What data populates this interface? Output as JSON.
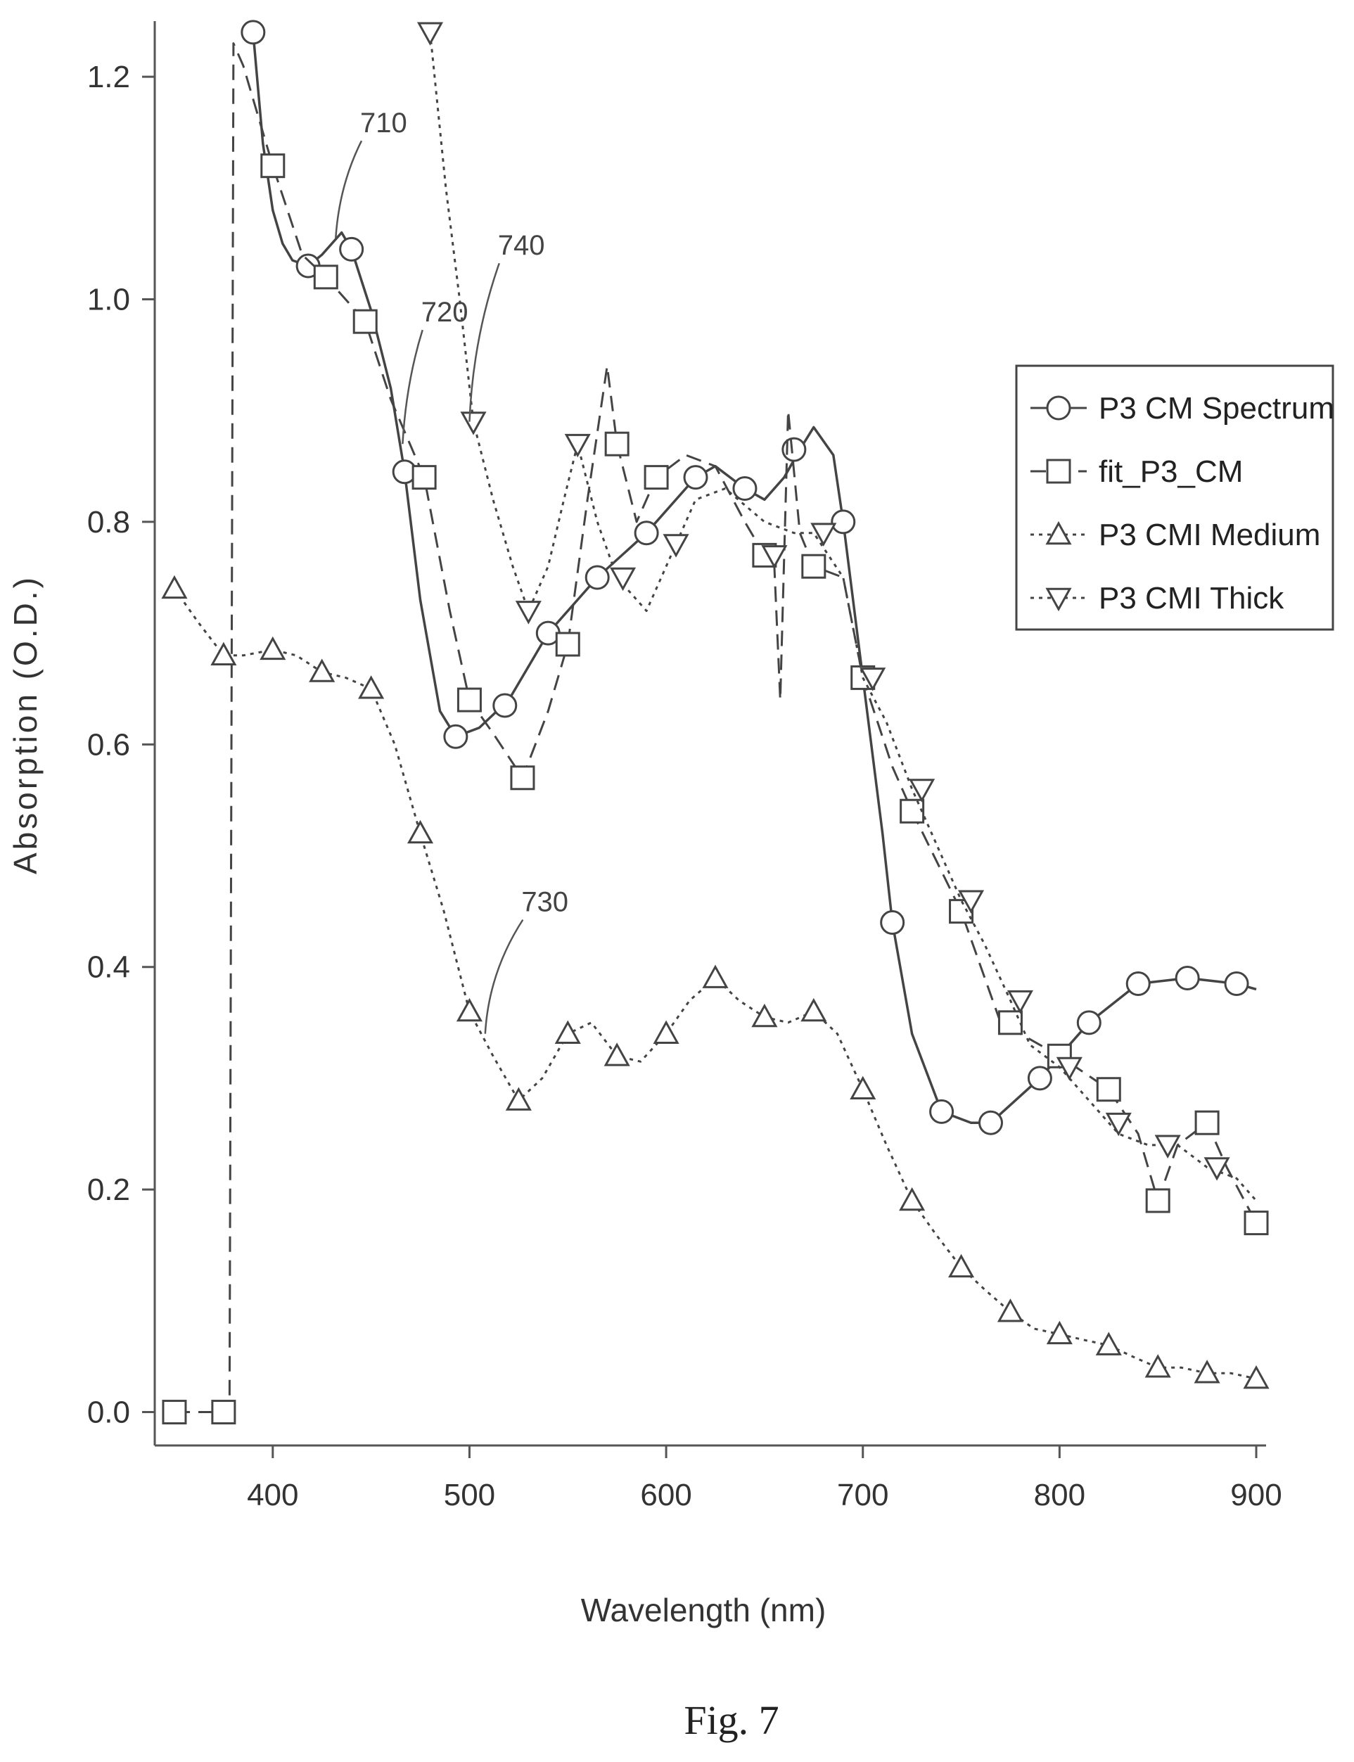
{
  "figure": {
    "caption": "Fig. 7"
  },
  "chart_data": {
    "type": "line",
    "title": "",
    "xlabel": "Wavelength (nm)",
    "ylabel": "Absorption (O.D.)",
    "xlim": [
      340,
      905
    ],
    "ylim": [
      -0.03,
      1.25
    ],
    "xticks": [
      400,
      500,
      600,
      700,
      800,
      900
    ],
    "yticks": [
      0.0,
      0.2,
      0.4,
      0.6,
      0.8,
      1.0,
      1.2
    ],
    "xtick_labels": [
      "400",
      "500",
      "600",
      "700",
      "800",
      "900"
    ],
    "ytick_labels": [
      "0.0",
      "0.2",
      "0.4",
      "0.6",
      "0.8",
      "1.0",
      "1.2"
    ],
    "grid": false,
    "legend_position": "right",
    "series": [
      {
        "name": "P3 CM Spectrum",
        "marker": "circle",
        "dash": "solid",
        "points": [
          [
            390,
            1.24
          ],
          [
            395,
            1.14
          ],
          [
            400,
            1.08
          ],
          [
            405,
            1.05
          ],
          [
            410,
            1.035
          ],
          [
            418,
            1.03
          ],
          [
            425,
            1.04
          ],
          [
            435,
            1.06
          ],
          [
            440,
            1.045
          ],
          [
            450,
            0.99
          ],
          [
            460,
            0.92
          ],
          [
            467,
            0.845
          ],
          [
            475,
            0.73
          ],
          [
            485,
            0.63
          ],
          [
            493,
            0.607
          ],
          [
            505,
            0.615
          ],
          [
            520,
            0.64
          ],
          [
            540,
            0.7
          ],
          [
            565,
            0.75
          ],
          [
            590,
            0.79
          ],
          [
            615,
            0.84
          ],
          [
            625,
            0.85
          ],
          [
            640,
            0.83
          ],
          [
            650,
            0.82
          ],
          [
            660,
            0.84
          ],
          [
            668,
            0.865
          ],
          [
            675,
            0.885
          ],
          [
            685,
            0.86
          ],
          [
            690,
            0.8
          ],
          [
            700,
            0.66
          ],
          [
            710,
            0.52
          ],
          [
            715,
            0.44
          ],
          [
            725,
            0.34
          ],
          [
            740,
            0.27
          ],
          [
            755,
            0.26
          ],
          [
            765,
            0.26
          ],
          [
            790,
            0.3
          ],
          [
            815,
            0.35
          ],
          [
            840,
            0.385
          ],
          [
            865,
            0.39
          ],
          [
            890,
            0.385
          ],
          [
            900,
            0.38
          ]
        ],
        "markers_at": [
          [
            390,
            1.24
          ],
          [
            418,
            1.03
          ],
          [
            440,
            1.045
          ],
          [
            467,
            0.845
          ],
          [
            493,
            0.607
          ],
          [
            518,
            0.635
          ],
          [
            540,
            0.7
          ],
          [
            565,
            0.75
          ],
          [
            590,
            0.79
          ],
          [
            615,
            0.84
          ],
          [
            640,
            0.83
          ],
          [
            665,
            0.865
          ],
          [
            690,
            0.8
          ],
          [
            715,
            0.44
          ],
          [
            740,
            0.27
          ],
          [
            765,
            0.26
          ],
          [
            790,
            0.3
          ],
          [
            815,
            0.35
          ],
          [
            840,
            0.385
          ],
          [
            865,
            0.39
          ],
          [
            890,
            0.385
          ]
        ]
      },
      {
        "name": "fit_P3_CM",
        "marker": "square",
        "dash": "dashed",
        "points": [
          [
            350,
            0.0
          ],
          [
            375,
            0.0
          ],
          [
            378,
            0.0
          ],
          [
            380,
            1.23
          ],
          [
            385,
            1.21
          ],
          [
            400,
            1.12
          ],
          [
            415,
            1.04
          ],
          [
            427,
            1.02
          ],
          [
            447,
            0.98
          ],
          [
            460,
            0.91
          ],
          [
            477,
            0.84
          ],
          [
            490,
            0.72
          ],
          [
            500,
            0.64
          ],
          [
            512,
            0.61
          ],
          [
            527,
            0.57
          ],
          [
            540,
            0.63
          ],
          [
            550,
            0.69
          ],
          [
            560,
            0.82
          ],
          [
            570,
            0.94
          ],
          [
            575,
            0.87
          ],
          [
            585,
            0.8
          ],
          [
            595,
            0.84
          ],
          [
            610,
            0.86
          ],
          [
            625,
            0.85
          ],
          [
            640,
            0.8
          ],
          [
            650,
            0.77
          ],
          [
            655,
            0.76
          ],
          [
            658,
            0.64
          ],
          [
            662,
            0.9
          ],
          [
            668,
            0.79
          ],
          [
            675,
            0.76
          ],
          [
            690,
            0.75
          ],
          [
            700,
            0.66
          ],
          [
            715,
            0.58
          ],
          [
            725,
            0.54
          ],
          [
            750,
            0.45
          ],
          [
            770,
            0.35
          ],
          [
            800,
            0.32
          ],
          [
            825,
            0.29
          ],
          [
            840,
            0.25
          ],
          [
            850,
            0.19
          ],
          [
            860,
            0.24
          ],
          [
            875,
            0.26
          ],
          [
            885,
            0.22
          ],
          [
            900,
            0.17
          ]
        ],
        "markers_at": [
          [
            350,
            0.0
          ],
          [
            375,
            0.0
          ],
          [
            400,
            1.12
          ],
          [
            427,
            1.02
          ],
          [
            447,
            0.98
          ],
          [
            477,
            0.84
          ],
          [
            500,
            0.64
          ],
          [
            527,
            0.57
          ],
          [
            550,
            0.69
          ],
          [
            575,
            0.87
          ],
          [
            595,
            0.84
          ],
          [
            650,
            0.77
          ],
          [
            675,
            0.76
          ],
          [
            700,
            0.66
          ],
          [
            725,
            0.54
          ],
          [
            750,
            0.45
          ],
          [
            775,
            0.35
          ],
          [
            800,
            0.32
          ],
          [
            825,
            0.29
          ],
          [
            850,
            0.19
          ],
          [
            875,
            0.26
          ],
          [
            900,
            0.17
          ]
        ]
      },
      {
        "name": "P3 CMI Medium",
        "marker": "triangle-up",
        "dash": "dotted",
        "points": [
          [
            350,
            0.74
          ],
          [
            362,
            0.71
          ],
          [
            375,
            0.68
          ],
          [
            385,
            0.68
          ],
          [
            400,
            0.685
          ],
          [
            412,
            0.68
          ],
          [
            425,
            0.665
          ],
          [
            437,
            0.66
          ],
          [
            450,
            0.65
          ],
          [
            462,
            0.6
          ],
          [
            475,
            0.52
          ],
          [
            487,
            0.45
          ],
          [
            500,
            0.36
          ],
          [
            512,
            0.32
          ],
          [
            525,
            0.28
          ],
          [
            537,
            0.3
          ],
          [
            550,
            0.34
          ],
          [
            562,
            0.35
          ],
          [
            575,
            0.32
          ],
          [
            587,
            0.315
          ],
          [
            600,
            0.34
          ],
          [
            612,
            0.37
          ],
          [
            625,
            0.39
          ],
          [
            637,
            0.37
          ],
          [
            650,
            0.355
          ],
          [
            662,
            0.35
          ],
          [
            675,
            0.36
          ],
          [
            687,
            0.34
          ],
          [
            700,
            0.29
          ],
          [
            712,
            0.24
          ],
          [
            725,
            0.19
          ],
          [
            737,
            0.16
          ],
          [
            750,
            0.13
          ],
          [
            762,
            0.11
          ],
          [
            775,
            0.09
          ],
          [
            787,
            0.075
          ],
          [
            800,
            0.07
          ],
          [
            812,
            0.065
          ],
          [
            825,
            0.06
          ],
          [
            837,
            0.05
          ],
          [
            850,
            0.04
          ],
          [
            862,
            0.04
          ],
          [
            875,
            0.035
          ],
          [
            887,
            0.035
          ],
          [
            900,
            0.03
          ]
        ],
        "markers_at": [
          [
            350,
            0.74
          ],
          [
            375,
            0.68
          ],
          [
            400,
            0.685
          ],
          [
            425,
            0.665
          ],
          [
            450,
            0.65
          ],
          [
            475,
            0.52
          ],
          [
            500,
            0.36
          ],
          [
            525,
            0.28
          ],
          [
            550,
            0.34
          ],
          [
            575,
            0.32
          ],
          [
            600,
            0.34
          ],
          [
            625,
            0.39
          ],
          [
            650,
            0.355
          ],
          [
            675,
            0.36
          ],
          [
            700,
            0.29
          ],
          [
            725,
            0.19
          ],
          [
            750,
            0.13
          ],
          [
            775,
            0.09
          ],
          [
            800,
            0.07
          ],
          [
            825,
            0.06
          ],
          [
            850,
            0.04
          ],
          [
            875,
            0.035
          ],
          [
            900,
            0.03
          ]
        ]
      },
      {
        "name": "P3 CMI Thick",
        "marker": "triangle-down",
        "dash": "dotted",
        "points": [
          [
            480,
            1.24
          ],
          [
            488,
            1.1
          ],
          [
            495,
            1.0
          ],
          [
            502,
            0.89
          ],
          [
            512,
            0.82
          ],
          [
            522,
            0.76
          ],
          [
            530,
            0.72
          ],
          [
            540,
            0.76
          ],
          [
            548,
            0.82
          ],
          [
            555,
            0.87
          ],
          [
            565,
            0.8
          ],
          [
            575,
            0.75
          ],
          [
            590,
            0.72
          ],
          [
            605,
            0.78
          ],
          [
            615,
            0.82
          ],
          [
            630,
            0.83
          ],
          [
            650,
            0.8
          ],
          [
            665,
            0.79
          ],
          [
            675,
            0.79
          ],
          [
            690,
            0.75
          ],
          [
            700,
            0.66
          ],
          [
            712,
            0.62
          ],
          [
            725,
            0.56
          ],
          [
            735,
            0.52
          ],
          [
            750,
            0.46
          ],
          [
            762,
            0.42
          ],
          [
            775,
            0.37
          ],
          [
            785,
            0.33
          ],
          [
            800,
            0.31
          ],
          [
            815,
            0.28
          ],
          [
            830,
            0.25
          ],
          [
            845,
            0.24
          ],
          [
            860,
            0.24
          ],
          [
            875,
            0.22
          ],
          [
            890,
            0.21
          ],
          [
            900,
            0.19
          ]
        ],
        "markers_at": [
          [
            480,
            1.24
          ],
          [
            502,
            0.89
          ],
          [
            530,
            0.72
          ],
          [
            555,
            0.87
          ],
          [
            578,
            0.75
          ],
          [
            605,
            0.78
          ],
          [
            655,
            0.77
          ],
          [
            680,
            0.79
          ],
          [
            705,
            0.66
          ],
          [
            730,
            0.56
          ],
          [
            755,
            0.46
          ],
          [
            780,
            0.37
          ],
          [
            805,
            0.31
          ],
          [
            830,
            0.26
          ],
          [
            855,
            0.24
          ],
          [
            880,
            0.22
          ]
        ]
      }
    ],
    "annotations": [
      {
        "text": "710",
        "target": [
          432,
          1.055
        ],
        "label_pos": [
          448,
          1.15
        ]
      },
      {
        "text": "720",
        "target": [
          466,
          0.87
        ],
        "label_pos": [
          479,
          0.98
        ]
      },
      {
        "text": "740",
        "target": [
          500,
          0.89
        ],
        "label_pos": [
          518,
          1.04
        ]
      },
      {
        "text": "730",
        "target": [
          508,
          0.34
        ],
        "label_pos": [
          530,
          0.45
        ]
      }
    ]
  }
}
